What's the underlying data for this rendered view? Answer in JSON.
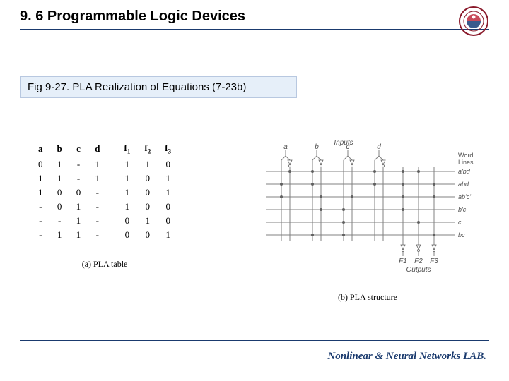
{
  "header": {
    "title": "9. 6 Programmable Logic Devices",
    "underline_color": "#1a3a6e"
  },
  "logo": {
    "outer_ring": "#8a1a2b",
    "inner_top": "#c84a5a",
    "inner_bottom": "#3a5a8c"
  },
  "subtitle": {
    "text": "Fig 9-27. PLA Realization of Equations (7-23b)",
    "bg": "#e6eff9",
    "border": "#b8c8e0"
  },
  "table": {
    "columns_left": [
      "a",
      "b",
      "c",
      "d"
    ],
    "columns_right": [
      "f",
      "f",
      "f"
    ],
    "columns_right_sub": [
      "1",
      "2",
      "3"
    ],
    "rows": [
      [
        "0",
        "1",
        "-",
        "1",
        "1",
        "1",
        "0"
      ],
      [
        "1",
        "1",
        "-",
        "1",
        "1",
        "0",
        "1"
      ],
      [
        "1",
        "0",
        "0",
        "-",
        "1",
        "0",
        "1"
      ],
      [
        "-",
        "0",
        "1",
        "-",
        "1",
        "0",
        "0"
      ],
      [
        "-",
        "-",
        "1",
        "-",
        "0",
        "1",
        "0"
      ],
      [
        "-",
        "1",
        "1",
        "-",
        "0",
        "0",
        "1"
      ]
    ],
    "caption": "(a) PLA table"
  },
  "diagram": {
    "caption": "(b) PLA structure",
    "inputs_label": "Inputs",
    "outputs_label": "Outputs",
    "wordlines_label": "Word\nLines",
    "input_names": [
      "a",
      "b",
      "c",
      "d"
    ],
    "term_labels": [
      "a'bd",
      "abd",
      "ab'c'",
      "b'c",
      "c",
      "bc"
    ],
    "output_names": [
      "F1",
      "F2",
      "F3"
    ],
    "colors": {
      "wire": "#808080",
      "dot": "#606060",
      "text": "#505050",
      "inverter_fill": "#ffffff",
      "inverter_stroke": "#606060"
    }
  },
  "footer": {
    "text": "Nonlinear & Neural Networks LAB.",
    "color": "#1a3a6e"
  }
}
